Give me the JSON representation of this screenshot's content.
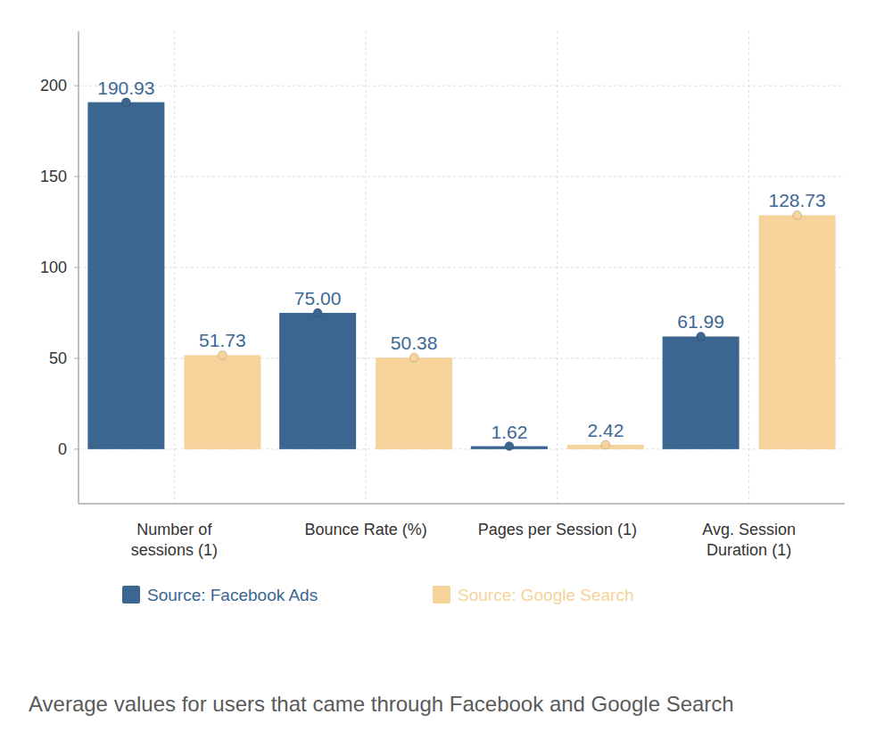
{
  "chart_data": {
    "type": "bar",
    "caption": "Average values for users that came through Facebook and Google Search",
    "categories": [
      "Number of sessions (1)",
      "Bounce Rate (%)",
      "Pages per Session (1)",
      "Avg. Session Duration (1)"
    ],
    "series": [
      {
        "name": "Source: Facebook Ads",
        "color": "#3b6690",
        "values": [
          190.93,
          75,
          1.62,
          61.99
        ],
        "value_labels": [
          "190.93",
          "75.00",
          "1.62",
          "61.99"
        ]
      },
      {
        "name": "Source: Google Search",
        "color": "#f5d39b",
        "values": [
          51.73,
          50.38,
          2.42,
          128.73
        ],
        "value_labels": [
          "51.73",
          "50.38",
          "2.42",
          "128.73"
        ]
      }
    ],
    "ylim": [
      -30,
      230
    ],
    "yticks": [
      0,
      50,
      100,
      150,
      200
    ],
    "grid": true,
    "data_labels": true,
    "legend": "bottom"
  }
}
